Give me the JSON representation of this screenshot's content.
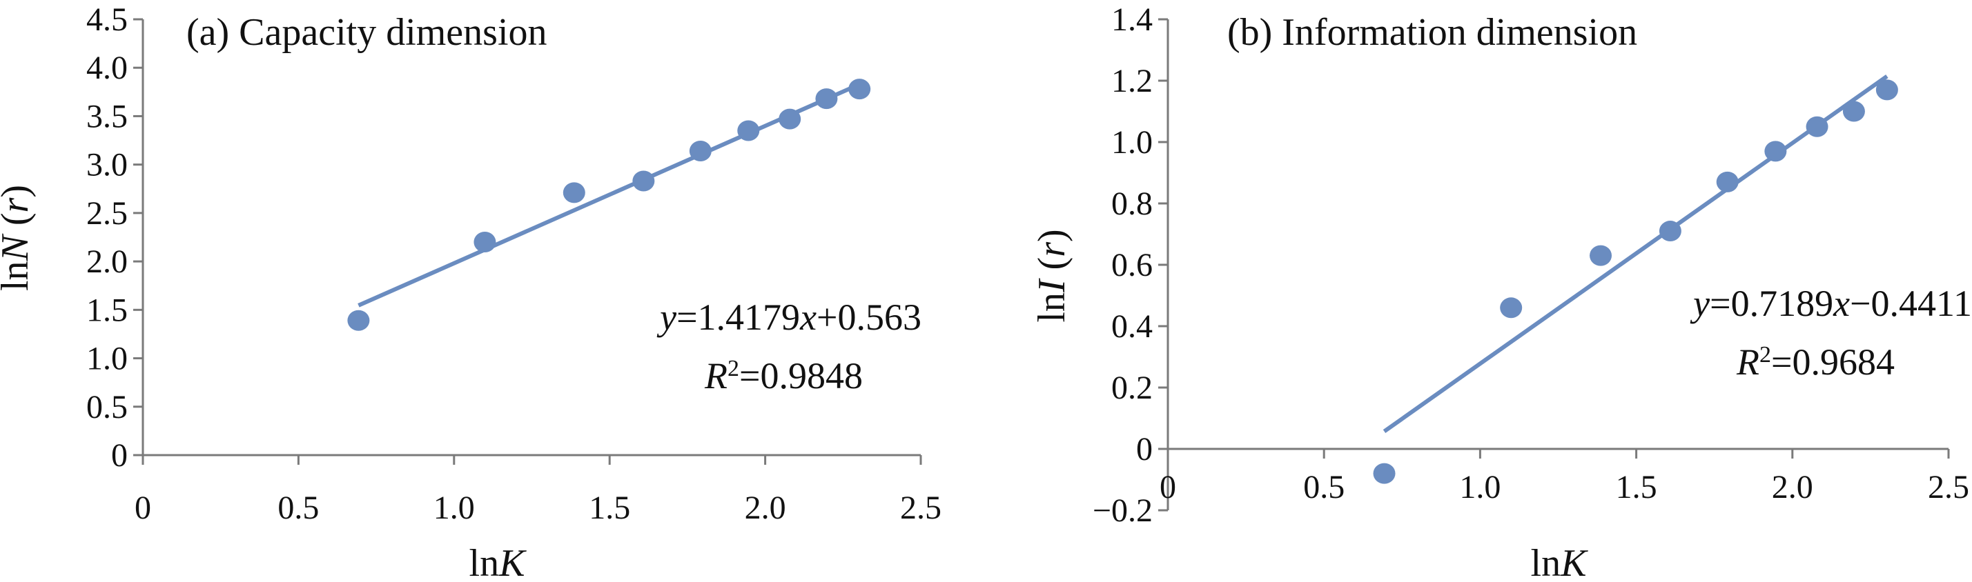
{
  "chart_data": [
    {
      "type": "scatter",
      "title": "(a) Capacity dimension",
      "xlabel": "lnK",
      "ylabel": "lnN (r)",
      "xlim": [
        0,
        2.5
      ],
      "ylim": [
        0,
        4.5
      ],
      "x_ticks": [
        "0",
        "0.5",
        "1.0",
        "1.5",
        "2.0",
        "2.5"
      ],
      "y_ticks": [
        "0",
        "0.5",
        "1.0",
        "1.5",
        "2.0",
        "2.5",
        "3.0",
        "3.5",
        "4.0",
        "4.5"
      ],
      "points": {
        "x": [
          0.693,
          1.099,
          1.386,
          1.609,
          1.792,
          1.946,
          2.079,
          2.197,
          2.303
        ],
        "y": [
          1.39,
          2.2,
          2.71,
          2.83,
          3.14,
          3.35,
          3.47,
          3.68,
          3.78
        ]
      },
      "trendline": {
        "slope": 1.4179,
        "intercept": 0.563,
        "x_range": [
          0.693,
          2.303
        ]
      },
      "equation": "y=1.4179x+0.563",
      "r_squared": "R2=0.9848",
      "color": "#6a8cc0"
    },
    {
      "type": "scatter",
      "title": "(b) Information dimension",
      "xlabel": "lnK",
      "ylabel": "lnI (r)",
      "xlim": [
        0,
        2.5
      ],
      "ylim": [
        -0.2,
        1.4
      ],
      "x_ticks": [
        "0",
        "0.5",
        "1.0",
        "1.5",
        "2.0",
        "2.5"
      ],
      "y_ticks": [
        "−0.2",
        "0",
        "0.2",
        "0.4",
        "0.6",
        "0.8",
        "1.0",
        "1.2",
        "1.4"
      ],
      "points": {
        "x": [
          0.693,
          1.099,
          1.386,
          1.609,
          1.792,
          1.946,
          2.079,
          2.197,
          2.303
        ],
        "y": [
          -0.08,
          0.46,
          0.63,
          0.71,
          0.87,
          0.97,
          1.05,
          1.1,
          1.17
        ]
      },
      "trendline": {
        "slope": 0.7189,
        "intercept": -0.4411,
        "x_range": [
          0.693,
          2.303
        ]
      },
      "equation": "y=0.7189x−0.4411",
      "r_squared": "R2=0.9684",
      "color": "#6a8cc0"
    }
  ]
}
